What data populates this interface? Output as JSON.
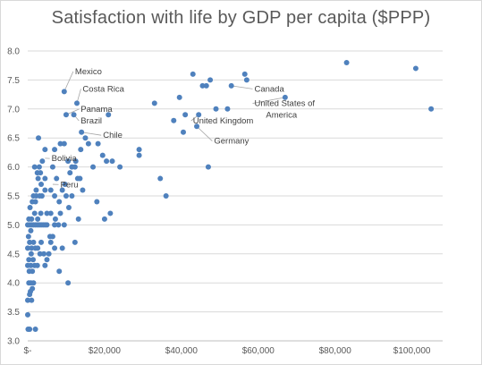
{
  "chart_data": {
    "type": "scatter",
    "title": "Satisfaction with life by GDP per capita ($PPP)",
    "xlabel": "",
    "ylabel": "",
    "xlim": [
      0,
      108000
    ],
    "ylim": [
      3.0,
      8.0
    ],
    "x_ticks": [
      {
        "value": 0,
        "label": "$-"
      },
      {
        "value": 20000,
        "label": "$20,000"
      },
      {
        "value": 40000,
        "label": "$40,000"
      },
      {
        "value": 60000,
        "label": "$60,000"
      },
      {
        "value": 80000,
        "label": "$80,000"
      },
      {
        "value": 100000,
        "label": "$100,000"
      }
    ],
    "y_ticks": [
      {
        "value": 3.0,
        "label": "3.0"
      },
      {
        "value": 3.5,
        "label": "3.5"
      },
      {
        "value": 4.0,
        "label": "4.0"
      },
      {
        "value": 4.5,
        "label": "4.5"
      },
      {
        "value": 5.0,
        "label": "5.0"
      },
      {
        "value": 5.5,
        "label": "5.5"
      },
      {
        "value": 6.0,
        "label": "6.0"
      },
      {
        "value": 6.5,
        "label": "6.5"
      },
      {
        "value": 7.0,
        "label": "7.0"
      },
      {
        "value": 7.5,
        "label": "7.5"
      },
      {
        "value": 8.0,
        "label": "8.0"
      }
    ],
    "grid": "horizontal",
    "marker_color": "#4f81bd",
    "points": [
      [
        0,
        3.45
      ],
      [
        100,
        3.2
      ],
      [
        500,
        3.2
      ],
      [
        2000,
        3.2
      ],
      [
        0,
        3.7
      ],
      [
        500,
        3.8
      ],
      [
        1000,
        3.7
      ],
      [
        700,
        3.85
      ],
      [
        1200,
        3.9
      ],
      [
        300,
        4.0
      ],
      [
        800,
        4.0
      ],
      [
        1500,
        4.0
      ],
      [
        0,
        4.3
      ],
      [
        400,
        4.2
      ],
      [
        800,
        4.3
      ],
      [
        1200,
        4.2
      ],
      [
        1800,
        4.3
      ],
      [
        2500,
        4.3
      ],
      [
        300,
        4.4
      ],
      [
        900,
        4.5
      ],
      [
        1400,
        4.4
      ],
      [
        0,
        4.6
      ],
      [
        500,
        4.7
      ],
      [
        1000,
        4.6
      ],
      [
        1500,
        4.7
      ],
      [
        2000,
        4.6
      ],
      [
        2600,
        4.6
      ],
      [
        3200,
        4.5
      ],
      [
        4200,
        4.5
      ],
      [
        200,
        4.8
      ],
      [
        800,
        4.9
      ],
      [
        0,
        5.0
      ],
      [
        500,
        5.0
      ],
      [
        1000,
        5.0
      ],
      [
        1500,
        5.0
      ],
      [
        2000,
        5.0
      ],
      [
        2500,
        5.0
      ],
      [
        3000,
        5.0
      ],
      [
        3500,
        5.0
      ],
      [
        4000,
        5.0
      ],
      [
        4500,
        5.0
      ],
      [
        300,
        5.1
      ],
      [
        1000,
        5.1
      ],
      [
        1800,
        5.2
      ],
      [
        2600,
        5.1
      ],
      [
        3400,
        5.2
      ],
      [
        600,
        5.3
      ],
      [
        1200,
        5.4
      ],
      [
        2000,
        5.4
      ],
      [
        1500,
        5.5
      ],
      [
        2200,
        5.5
      ],
      [
        3100,
        5.5
      ],
      [
        2200,
        5.6
      ],
      [
        3700,
        5.5
      ],
      [
        4500,
        5.6
      ],
      [
        2700,
        5.8
      ],
      [
        3500,
        5.7
      ],
      [
        4500,
        5.8
      ],
      [
        2500,
        5.9
      ],
      [
        3300,
        5.9
      ],
      [
        1800,
        6.0
      ],
      [
        3000,
        6.0
      ],
      [
        3800,
        6.1
      ],
      [
        2800,
        6.5
      ],
      [
        4500,
        6.3
      ],
      [
        3500,
        4.7
      ],
      [
        4500,
        4.3
      ],
      [
        5000,
        4.4
      ],
      [
        5500,
        4.5
      ],
      [
        6000,
        4.7
      ],
      [
        7000,
        4.6
      ],
      [
        8200,
        4.2
      ],
      [
        9000,
        4.6
      ],
      [
        10500,
        4.0
      ],
      [
        5000,
        5.0
      ],
      [
        5800,
        4.8
      ],
      [
        6500,
        4.8
      ],
      [
        7000,
        5.0
      ],
      [
        8000,
        5.0
      ],
      [
        9500,
        5.0
      ],
      [
        5000,
        5.2
      ],
      [
        6000,
        5.2
      ],
      [
        7200,
        5.1
      ],
      [
        8500,
        5.2
      ],
      [
        6000,
        5.6
      ],
      [
        7000,
        5.5
      ],
      [
        7500,
        5.8
      ],
      [
        8200,
        5.4
      ],
      [
        9000,
        5.6
      ],
      [
        10000,
        5.5
      ],
      [
        11000,
        5.9
      ],
      [
        11500,
        5.5
      ],
      [
        6500,
        6.0
      ],
      [
        7000,
        6.3
      ],
      [
        8500,
        6.4
      ],
      [
        9500,
        6.4
      ],
      [
        10500,
        6.1
      ],
      [
        11500,
        6.0
      ],
      [
        12500,
        6.1
      ],
      [
        12300,
        4.7
      ],
      [
        13200,
        5.1
      ],
      [
        13000,
        5.8
      ],
      [
        12300,
        6.0
      ],
      [
        13600,
        5.8
      ],
      [
        14300,
        5.6
      ],
      [
        15000,
        6.5
      ],
      [
        15800,
        6.4
      ],
      [
        18300,
        6.4
      ],
      [
        13800,
        6.3
      ],
      [
        10700,
        5.3
      ],
      [
        9700,
        5.7
      ],
      [
        9500,
        7.3
      ],
      [
        12800,
        7.1
      ],
      [
        10000,
        6.9
      ],
      [
        12000,
        6.9
      ],
      [
        14000,
        6.6
      ],
      [
        21000,
        6.9
      ],
      [
        17000,
        6.0
      ],
      [
        18000,
        5.4
      ],
      [
        20000,
        5.1
      ],
      [
        21500,
        5.2
      ],
      [
        20500,
        6.1
      ],
      [
        22000,
        6.1
      ],
      [
        24000,
        6.0
      ],
      [
        19500,
        6.2
      ],
      [
        29000,
        6.3
      ],
      [
        29000,
        6.2
      ],
      [
        33000,
        7.1
      ],
      [
        34500,
        5.8
      ],
      [
        36000,
        5.5
      ],
      [
        38000,
        6.8
      ],
      [
        39500,
        7.2
      ],
      [
        40500,
        6.6
      ],
      [
        41000,
        6.9
      ],
      [
        44000,
        6.7
      ],
      [
        44500,
        6.9
      ],
      [
        43000,
        7.6
      ],
      [
        45500,
        7.4
      ],
      [
        46500,
        7.4
      ],
      [
        47500,
        7.5
      ],
      [
        47000,
        6.0
      ],
      [
        49000,
        7.0
      ],
      [
        52000,
        7.0
      ],
      [
        53000,
        7.4
      ],
      [
        56500,
        7.6
      ],
      [
        57000,
        7.5
      ],
      [
        67000,
        7.2
      ],
      [
        83000,
        7.8
      ],
      [
        101000,
        7.7
      ],
      [
        105000,
        7.0
      ]
    ],
    "annotations": [
      {
        "text": "Mexico",
        "point": [
          9500,
          7.3
        ],
        "label_at": [
          12300,
          7.6
        ]
      },
      {
        "text": "Costa Rica",
        "point": [
          12800,
          7.1
        ],
        "label_at": [
          14300,
          7.3
        ]
      },
      {
        "text": "Panama",
        "point": [
          10000,
          6.9
        ],
        "label_at": [
          13800,
          6.95
        ]
      },
      {
        "text": "Brazil",
        "point": [
          12000,
          6.9
        ],
        "label_at": [
          13800,
          6.75
        ]
      },
      {
        "text": "Chile",
        "point": [
          14000,
          6.6
        ],
        "label_at": [
          19600,
          6.5
        ]
      },
      {
        "text": "Bolivia",
        "point": [
          4500,
          6.15
        ],
        "label_at": [
          6200,
          6.1
        ]
      },
      {
        "text": "Peru",
        "point": [
          6500,
          5.7
        ],
        "label_at": [
          8500,
          5.65
        ]
      },
      {
        "text": "Canada",
        "point": [
          53000,
          7.4
        ],
        "label_at": [
          59000,
          7.3
        ]
      },
      {
        "text": "United States of",
        "point": [
          67000,
          7.2
        ],
        "label_at": [
          59000,
          7.05
        ]
      },
      {
        "text": "America",
        "point": null,
        "label_at": [
          62000,
          6.85
        ]
      },
      {
        "text": "United Kingdom",
        "point": [
          44500,
          6.9
        ],
        "label_at": [
          43000,
          6.75
        ]
      },
      {
        "text": "Germany",
        "point": [
          44000,
          6.7
        ],
        "label_at": [
          48500,
          6.4
        ]
      }
    ]
  }
}
